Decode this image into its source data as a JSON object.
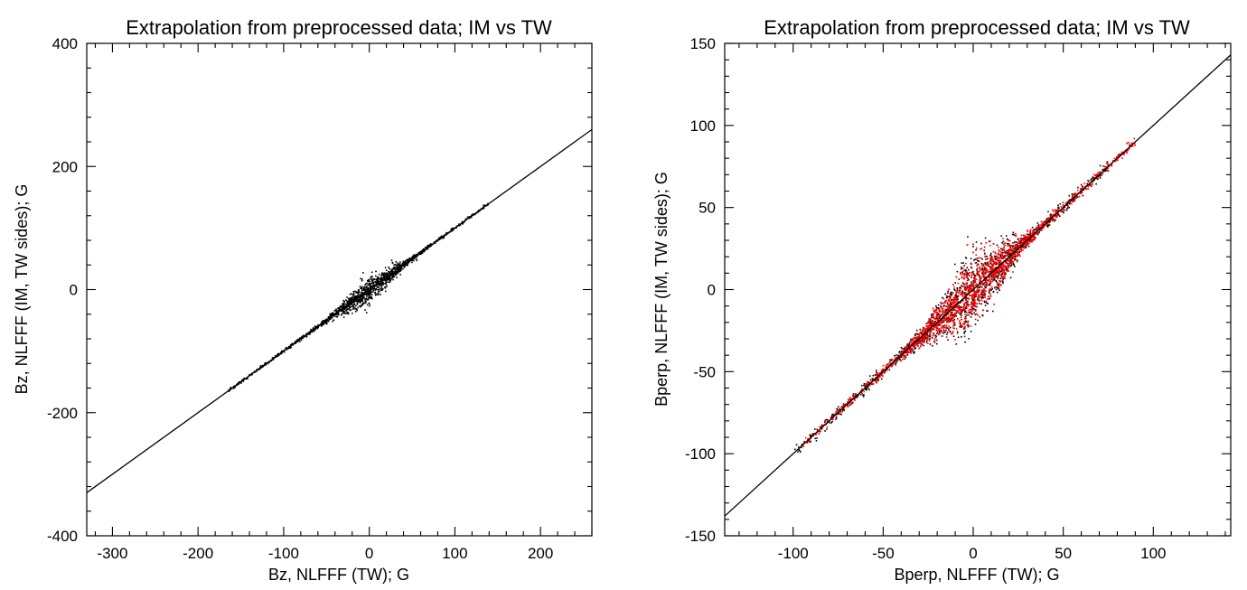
{
  "chart_data": [
    {
      "type": "scatter",
      "title": "Extrapolation from preprocessed data; IM vs TW",
      "xlabel": "Bz, NLFFF (TW); G",
      "ylabel": "Bz, NLFFF (IM, TW sides); G",
      "xlim": [
        -330,
        260
      ],
      "ylim": [
        -400,
        400
      ],
      "xticks": [
        -300,
        -200,
        -100,
        0,
        100,
        200
      ],
      "yticks": [
        -400,
        -200,
        0,
        200,
        400
      ],
      "xtick_labels": [
        "-300",
        "-200",
        "-100",
        "0",
        "100",
        "200"
      ],
      "ytick_labels": [
        "-400",
        "-200",
        "0",
        "200",
        "400"
      ],
      "grid": false,
      "legend": "none",
      "reference_line": {
        "slope": 1,
        "intercept": 0,
        "color": "#000000"
      },
      "series": [
        {
          "color": "#000000",
          "x_range": [
            -165,
            140
          ],
          "core_spread": 28,
          "tail_spread": 3
        }
      ]
    },
    {
      "type": "scatter",
      "title": "Extrapolation from preprocessed data; IM vs TW",
      "xlabel": "Bperp, NLFFF (TW); G",
      "ylabel": "Bperp, NLFFF (IM, TW sides); G",
      "xlim": [
        -138,
        143
      ],
      "ylim": [
        -150,
        150
      ],
      "xticks": [
        -100,
        -50,
        0,
        50,
        100
      ],
      "yticks": [
        -150,
        -100,
        -50,
        0,
        50,
        100,
        150
      ],
      "xtick_labels": [
        "-100",
        "-50",
        "0",
        "50",
        "100"
      ],
      "ytick_labels": [
        "-150",
        "-100",
        "-50",
        "0",
        "50",
        "100",
        "150"
      ],
      "grid": false,
      "legend": "none",
      "reference_line": {
        "slope": 1,
        "intercept": 0,
        "color": "#000000"
      },
      "series": [
        {
          "color": "#000000",
          "x_range": [
            -100,
            75
          ],
          "core_spread": 30,
          "tail_spread": 4
        },
        {
          "color": "#ff0000",
          "x_range": [
            -95,
            90
          ],
          "core_spread": 26,
          "tail_spread": 3
        }
      ]
    }
  ]
}
